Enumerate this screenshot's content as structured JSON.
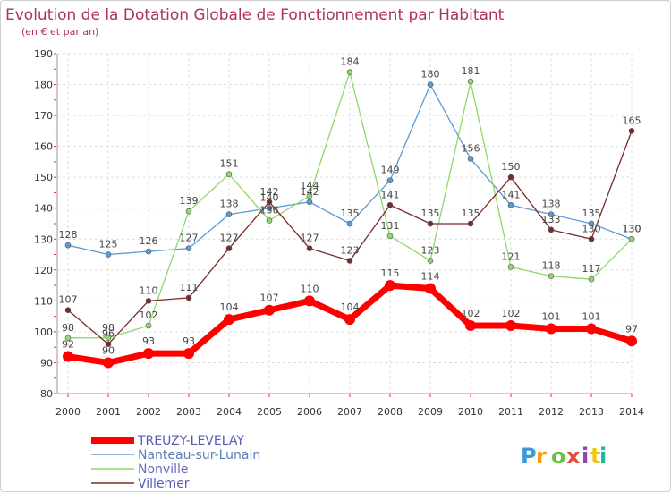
{
  "chart_data": {
    "type": "line",
    "title": "Evolution de la Dotation Globale de Fonctionnement par Habitant",
    "subtitle": "(en € et par an)",
    "xlabel": "",
    "ylabel": "",
    "x": [
      "2000",
      "2001",
      "2002",
      "2003",
      "2004",
      "2005",
      "2006",
      "2007",
      "2008",
      "2009",
      "2010",
      "2011",
      "2012",
      "2013",
      "2014"
    ],
    "ylim": [
      80,
      190
    ],
    "yticks": [
      "80",
      "90",
      "100",
      "110",
      "120",
      "130",
      "140",
      "150",
      "160",
      "170",
      "180",
      "190"
    ],
    "grid": true,
    "legend_placement": "bottom-left",
    "series": [
      {
        "name": "TREUZY-LEVELAY",
        "color": "#ff0000",
        "values": [
          92,
          90,
          93,
          93,
          104,
          107,
          110,
          104,
          115,
          114,
          102,
          102,
          101,
          101,
          97
        ],
        "labels": [
          "92",
          "90",
          "93",
          "93",
          "104",
          "107",
          "110",
          "104",
          "115",
          "114",
          "102",
          "102",
          "101",
          "101",
          "97"
        ]
      },
      {
        "name": "Nanteau-sur-Lunain",
        "color": "#5b9bd5",
        "values": [
          128,
          125,
          126,
          127,
          138,
          140,
          142,
          135,
          149,
          180,
          156,
          141,
          138,
          135,
          130
        ],
        "labels": [
          "128",
          "125",
          "126",
          "127",
          "138",
          "140",
          "142",
          "135",
          "149",
          "180",
          "156",
          "141",
          "138",
          "135",
          "130"
        ]
      },
      {
        "name": "Nonville",
        "color": "#8fd86a",
        "values": [
          98,
          98,
          102,
          139,
          151,
          136,
          144,
          184,
          131,
          123,
          181,
          121,
          118,
          117,
          130
        ],
        "labels": [
          "98",
          "98",
          "102",
          "139",
          "151",
          "136",
          "144",
          "184",
          "131",
          "123",
          "181",
          "121",
          "118",
          "117",
          "130"
        ]
      },
      {
        "name": "Villemer",
        "color": "#7a2a2a",
        "values": [
          107,
          96,
          110,
          111,
          127,
          142,
          127,
          123,
          141,
          135,
          135,
          150,
          133,
          130,
          165
        ],
        "labels": [
          "107",
          "96",
          "110",
          "111",
          "127",
          "142",
          "127",
          "123",
          "141",
          "135",
          "135",
          "150",
          "133",
          "130",
          "165"
        ]
      }
    ]
  },
  "branding": {
    "logo_text": "Proxiti",
    "logo_colors": [
      "#3a9ad9",
      "#f39c12",
      "#6abf40",
      "#e74c3c",
      "#8e44ad",
      "#f1c40f",
      "#1abc9c"
    ]
  }
}
